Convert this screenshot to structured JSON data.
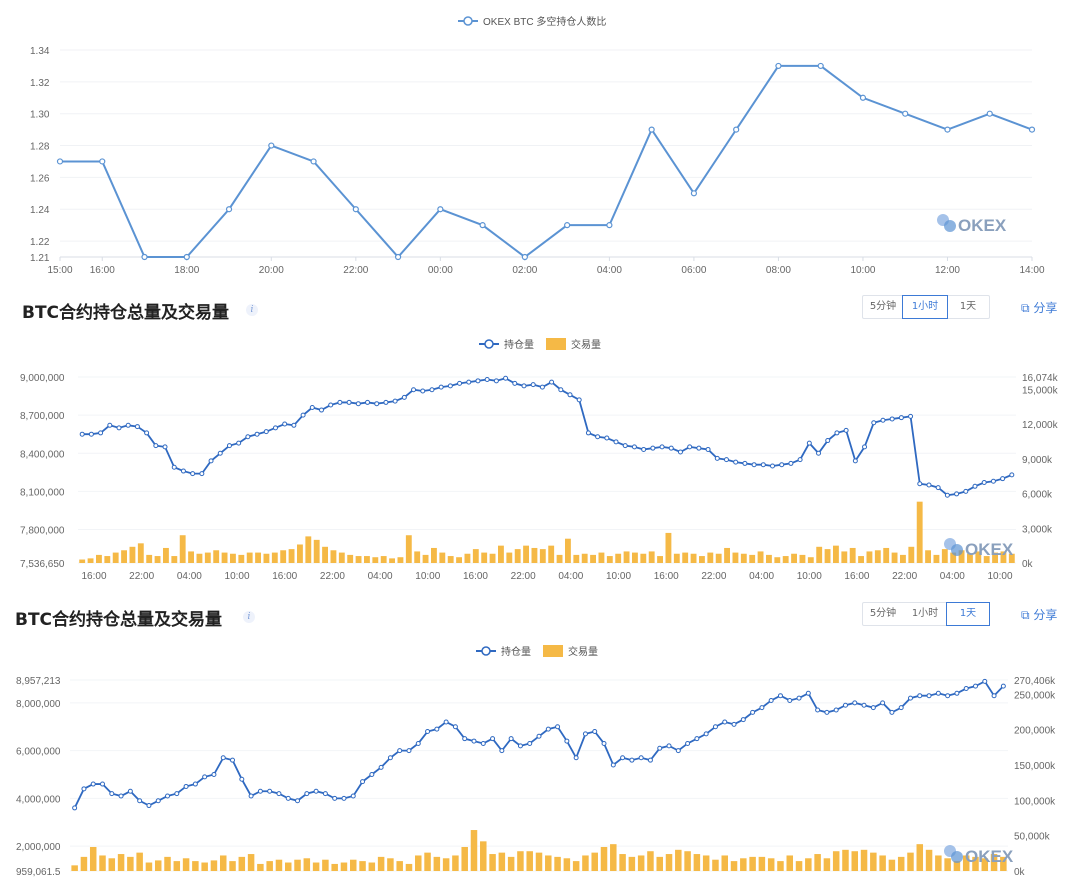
{
  "chart1": {
    "legend": "OKEX BTC 多空持仓人数比",
    "watermark": "OKEX",
    "chart_data": {
      "type": "line",
      "x": [
        "15:00",
        "16:00",
        "17:00",
        "18:00",
        "19:00",
        "20:00",
        "21:00",
        "22:00",
        "23:00",
        "00:00",
        "01:00",
        "02:00",
        "03:00",
        "04:00",
        "05:00",
        "06:00",
        "07:00",
        "08:00",
        "09:00",
        "10:00",
        "11:00",
        "12:00",
        "13:00",
        "14:00"
      ],
      "xticks": [
        "15:00",
        "16:00",
        "18:00",
        "20:00",
        "22:00",
        "00:00",
        "02:00",
        "04:00",
        "06:00",
        "08:00",
        "10:00",
        "12:00",
        "14:00"
      ],
      "series": [
        {
          "name": "OKEX BTC 多空持仓人数比",
          "values": [
            1.27,
            1.27,
            1.21,
            1.21,
            1.24,
            1.28,
            1.27,
            1.24,
            1.21,
            1.24,
            1.23,
            1.21,
            1.23,
            1.23,
            1.29,
            1.25,
            1.29,
            1.33,
            1.33,
            1.31,
            1.3,
            1.29,
            1.3,
            1.29
          ]
        }
      ],
      "yticks": [
        "1.34",
        "1.32",
        "1.30",
        "1.28",
        "1.26",
        "1.24",
        "1.22",
        "1.21"
      ],
      "ylim": [
        1.21,
        1.34
      ],
      "color": "#5b93d3"
    }
  },
  "section2": {
    "title": "BTC合约持仓总量及交易量",
    "info": "i",
    "periods": [
      "5分钟",
      "1小时",
      "1天"
    ],
    "active": 1,
    "share": "分享",
    "legend_oi": "持仓量",
    "legend_vol": "交易量",
    "watermark": "OKEX",
    "chart_data": {
      "type": "line+bar",
      "xticks": [
        "16:00",
        "22:00",
        "04:00",
        "10:00",
        "16:00",
        "22:00",
        "04:00",
        "10:00",
        "16:00",
        "22:00",
        "04:00",
        "10:00",
        "16:00",
        "22:00",
        "04:00",
        "10:00",
        "16:00",
        "22:00",
        "04:00",
        "10:00"
      ],
      "series": [
        {
          "name": "持仓量",
          "type": "line",
          "color": "#2f69c1",
          "values": [
            8550000,
            8550000,
            8560000,
            8620000,
            8600000,
            8620000,
            8610000,
            8560000,
            8460000,
            8450000,
            8290000,
            8260000,
            8240000,
            8240000,
            8340000,
            8400000,
            8460000,
            8480000,
            8530000,
            8550000,
            8570000,
            8600000,
            8630000,
            8620000,
            8700000,
            8760000,
            8740000,
            8780000,
            8800000,
            8800000,
            8790000,
            8800000,
            8790000,
            8800000,
            8810000,
            8840000,
            8900000,
            8890000,
            8900000,
            8920000,
            8930000,
            8950000,
            8960000,
            8970000,
            8980000,
            8970000,
            8990000,
            8950000,
            8930000,
            8940000,
            8920000,
            8960000,
            8900000,
            8860000,
            8820000,
            8560000,
            8530000,
            8520000,
            8490000,
            8460000,
            8450000,
            8430000,
            8440000,
            8450000,
            8440000,
            8410000,
            8450000,
            8440000,
            8430000,
            8360000,
            8350000,
            8330000,
            8320000,
            8310000,
            8310000,
            8300000,
            8310000,
            8320000,
            8350000,
            8480000,
            8400000,
            8500000,
            8560000,
            8580000,
            8340000,
            8450000,
            8640000,
            8660000,
            8670000,
            8680000,
            8690000,
            8160000,
            8150000,
            8130000,
            8070000,
            8080000,
            8100000,
            8140000,
            8170000,
            8180000,
            8200000,
            8230000
          ],
          "range": [
            7536650,
            9000000
          ]
        },
        {
          "name": "交易量",
          "type": "bar",
          "color": "#f5b946",
          "unit": "k",
          "values": [
            300,
            400,
            700,
            600,
            900,
            1100,
            1400,
            1700,
            700,
            600,
            1300,
            600,
            2400,
            1000,
            800,
            900,
            1100,
            900,
            800,
            700,
            900,
            900,
            800,
            900,
            1100,
            1200,
            1600,
            2300,
            2000,
            1400,
            1100,
            900,
            700,
            600,
            600,
            500,
            600,
            400,
            500,
            2400,
            1000,
            700,
            1300,
            900,
            600,
            500,
            800,
            1200,
            900,
            800,
            1500,
            900,
            1200,
            1500,
            1300,
            1200,
            1500,
            700,
            2100,
            700,
            800,
            700,
            900,
            600,
            800,
            1000,
            900,
            800,
            1000,
            600,
            2600,
            800,
            900,
            800,
            600,
            900,
            800,
            1300,
            900,
            800,
            700,
            1000,
            700,
            500,
            600,
            800,
            700,
            500,
            1400,
            1200,
            1500,
            1000,
            1300,
            600,
            1000,
            1100,
            1300,
            900,
            700,
            1400,
            5300,
            1100,
            700,
            1200,
            900,
            1100,
            800,
            1000,
            600,
            900,
            1000,
            800
          ],
          "range": [
            0,
            16074
          ]
        }
      ],
      "y_left_ticks": [
        "9,000,000",
        "8,700,000",
        "8,400,000",
        "8,100,000",
        "7,800,000",
        "7,536,650"
      ],
      "y_right_ticks": [
        "16,074k",
        "15,000k",
        "12,000k",
        "9,000k",
        "6,000k",
        "3,000k",
        "0k"
      ]
    }
  },
  "section3": {
    "title": "BTC合约持仓总量及交易量",
    "info": "i",
    "periods": [
      "5分钟",
      "1小时",
      "1天"
    ],
    "active": 2,
    "share": "分享",
    "legend_oi": "持仓量",
    "legend_vol": "交易量",
    "watermark": "OKEX",
    "chart_data": {
      "type": "line+bar",
      "series": [
        {
          "name": "持仓量",
          "type": "line",
          "color": "#2f69c1",
          "values": [
            3600000,
            4400000,
            4600000,
            4600000,
            4200000,
            4100000,
            4300000,
            3900000,
            3700000,
            3900000,
            4100000,
            4200000,
            4500000,
            4600000,
            4900000,
            5000000,
            5700000,
            5600000,
            4800000,
            4100000,
            4300000,
            4300000,
            4200000,
            4000000,
            3900000,
            4200000,
            4300000,
            4200000,
            4000000,
            4000000,
            4100000,
            4700000,
            5000000,
            5300000,
            5700000,
            6000000,
            6000000,
            6300000,
            6800000,
            6900000,
            7200000,
            7000000,
            6500000,
            6400000,
            6300000,
            6500000,
            6000000,
            6500000,
            6200000,
            6300000,
            6600000,
            6900000,
            7000000,
            6400000,
            5700000,
            6700000,
            6800000,
            6300000,
            5400000,
            5700000,
            5600000,
            5700000,
            5600000,
            6100000,
            6200000,
            6000000,
            6300000,
            6500000,
            6700000,
            7000000,
            7200000,
            7100000,
            7300000,
            7600000,
            7800000,
            8100000,
            8300000,
            8100000,
            8200000,
            8400000,
            7700000,
            7600000,
            7700000,
            7900000,
            8000000,
            7900000,
            7800000,
            8000000,
            7600000,
            7800000,
            8200000,
            8300000,
            8300000,
            8400000,
            8300000,
            8400000,
            8600000,
            8700000,
            8900000,
            8300000,
            8700000
          ],
          "range": [
            959061.5,
            8957213
          ]
        },
        {
          "name": "交易量",
          "type": "bar",
          "color": "#f5b946",
          "unit": "k",
          "values": [
            8000,
            20000,
            34000,
            22000,
            18000,
            24000,
            20000,
            26000,
            12000,
            15000,
            20000,
            14000,
            18000,
            14000,
            12000,
            15000,
            22000,
            14000,
            20000,
            24000,
            10000,
            14000,
            16000,
            12000,
            16000,
            18000,
            12000,
            16000,
            10000,
            12000,
            16000,
            14000,
            12000,
            20000,
            18000,
            14000,
            10000,
            22000,
            26000,
            20000,
            18000,
            22000,
            34000,
            58000,
            42000,
            24000,
            26000,
            20000,
            28000,
            28000,
            26000,
            22000,
            20000,
            18000,
            14000,
            22000,
            26000,
            34000,
            38000,
            24000,
            20000,
            22000,
            28000,
            20000,
            24000,
            30000,
            28000,
            24000,
            22000,
            16000,
            22000,
            14000,
            18000,
            20000,
            20000,
            18000,
            14000,
            22000,
            14000,
            18000,
            24000,
            18000,
            28000,
            30000,
            28000,
            30000,
            26000,
            22000,
            16000,
            20000,
            26000,
            38000,
            30000,
            22000,
            18000,
            14000,
            22000,
            20000,
            18000,
            24000,
            20000
          ],
          "range": [
            0,
            270406
          ]
        }
      ],
      "y_left_ticks": [
        "8,957,213",
        "8,000,000",
        "6,000,000",
        "4,000,000",
        "2,000,000",
        "959,061.5"
      ],
      "y_right_ticks": [
        "270,406k",
        "250,000k",
        "200,000k",
        "150,000k",
        "100,000k",
        "50,000k",
        "0k"
      ]
    }
  }
}
